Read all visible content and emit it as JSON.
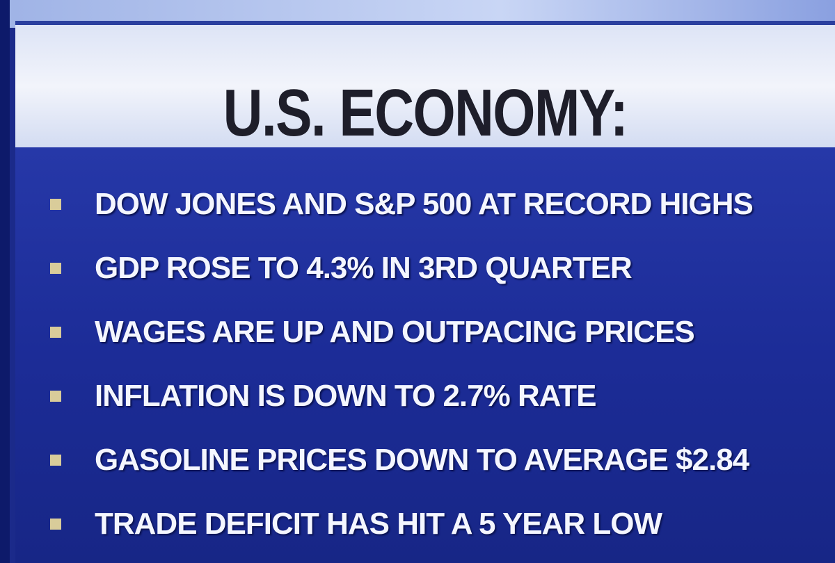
{
  "header": {
    "title": "U.S. ECONOMY:"
  },
  "bullets": [
    "DOW JONES AND S&P 500 AT RECORD HIGHS",
    "GDP ROSE TO 4.3% IN 3RD QUARTER",
    "WAGES ARE UP AND OUTPACING PRICES",
    "INFLATION IS DOWN TO 2.7% RATE",
    "GASOLINE PRICES DOWN TO AVERAGE $2.84",
    "TRADE DEFICIT HAS HIT A 5 YEAR LOW"
  ]
}
